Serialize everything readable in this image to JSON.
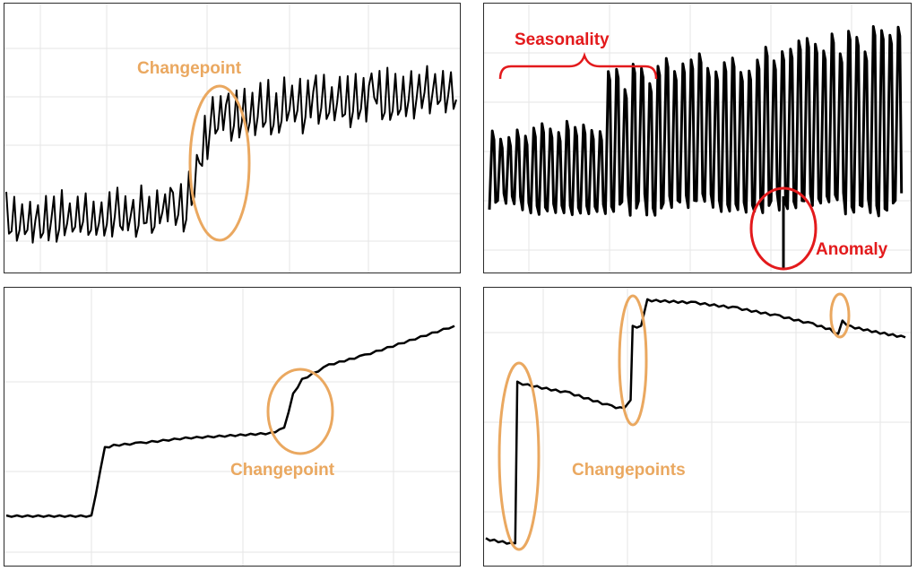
{
  "colors": {
    "series": "#000000",
    "changepoint": "#eaa860",
    "anomaly": "#e31a1c",
    "grid": "#e6e6e6",
    "frame": "#2b2b2b"
  },
  "chart_data": [
    {
      "type": "line",
      "title": "",
      "xlabel": "",
      "ylabel": "",
      "annotations": [
        {
          "text": "Changepoint",
          "kind": "changepoint-ellipse",
          "x": 0.44
        }
      ],
      "series": [
        {
          "base_levels": [
            {
              "from": 0.0,
              "to": 0.4,
              "level": 0.25
            },
            {
              "from": 0.46,
              "to": 1.0,
              "level": 0.6
            }
          ],
          "trend_after": 0.08,
          "pattern": "noisy periodic oscillation with spikes"
        }
      ],
      "grid": true
    },
    {
      "type": "line",
      "title": "",
      "xlabel": "",
      "ylabel": "",
      "annotations": [
        {
          "text": "Seasonality",
          "kind": "brace",
          "x_from": 0.03,
          "x_to": 0.36
        },
        {
          "text": "Anomaly",
          "kind": "anomaly-circle",
          "x": 0.72
        }
      ],
      "series": [
        {
          "pattern": "strong weekly seasonal peaks, level shift upward at x=0.28",
          "anomaly_x": 0.72
        }
      ],
      "grid": true
    },
    {
      "type": "line",
      "title": "",
      "xlabel": "",
      "ylabel": "",
      "annotations": [
        {
          "text": "Changepoint",
          "kind": "changepoint-ellipse",
          "x": 0.64
        }
      ],
      "series": [
        {
          "points": [
            [
              0.0,
              0.1
            ],
            [
              0.19,
              0.1
            ],
            [
              0.22,
              0.38
            ],
            [
              0.24,
              0.39
            ],
            [
              0.3,
              0.4
            ],
            [
              0.4,
              0.42
            ],
            [
              0.5,
              0.43
            ],
            [
              0.59,
              0.44
            ],
            [
              0.62,
              0.46
            ],
            [
              0.64,
              0.6
            ],
            [
              0.66,
              0.66
            ],
            [
              0.72,
              0.72
            ],
            [
              0.8,
              0.76
            ],
            [
              0.9,
              0.82
            ],
            [
              1.0,
              0.88
            ]
          ]
        }
      ],
      "grid": true
    },
    {
      "type": "line",
      "title": "",
      "xlabel": "",
      "ylabel": "",
      "annotations": [
        {
          "text": "Changepoints",
          "kind": "changepoint-ellipses",
          "xs": [
            0.07,
            0.35,
            0.84
          ]
        }
      ],
      "series": [
        {
          "points": [
            [
              0.0,
              0.08
            ],
            [
              0.07,
              0.06
            ],
            [
              0.075,
              0.67
            ],
            [
              0.1,
              0.66
            ],
            [
              0.2,
              0.63
            ],
            [
              0.3,
              0.58
            ],
            [
              0.33,
              0.57
            ],
            [
              0.345,
              0.6
            ],
            [
              0.35,
              0.88
            ],
            [
              0.37,
              0.88
            ],
            [
              0.385,
              0.98
            ],
            [
              0.5,
              0.97
            ],
            [
              0.6,
              0.95
            ],
            [
              0.7,
              0.92
            ],
            [
              0.78,
              0.89
            ],
            [
              0.82,
              0.87
            ],
            [
              0.84,
              0.85
            ],
            [
              0.85,
              0.9
            ],
            [
              0.87,
              0.88
            ],
            [
              0.93,
              0.86
            ],
            [
              1.0,
              0.84
            ]
          ]
        }
      ],
      "grid": true
    }
  ]
}
